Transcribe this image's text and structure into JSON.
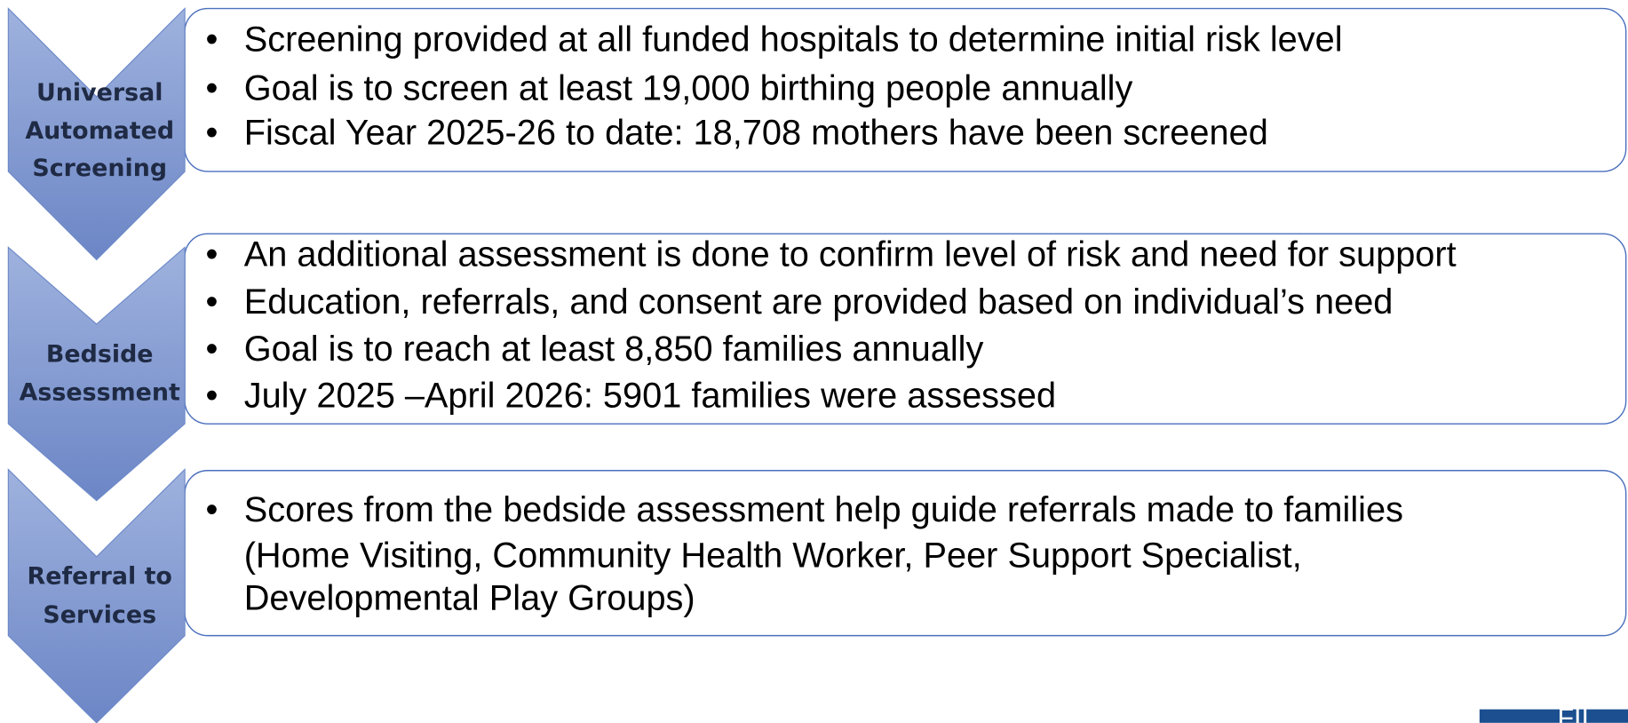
{
  "stages": [
    {
      "label": [
        "Universal",
        "Automated",
        "Screening"
      ],
      "bullets": [
        [
          "Screening provided at all funded hospitals to determine initial risk level"
        ],
        [
          "Goal is to screen at least 19,000 birthing people annually"
        ],
        [
          "Fiscal Year 2025-26 to date:  18,708 mothers have been screened"
        ]
      ]
    },
    {
      "label": [
        "Bedside",
        "Assessment"
      ],
      "bullets": [
        [
          "An additional assessment is done to confirm level of risk and need for support"
        ],
        [
          "Education, referrals, and consent are provided based on individual’s need"
        ],
        [
          "Goal is to reach at least 8,850 families annually"
        ],
        [
          "July 2025 –April 2026: 5901 families were assessed"
        ]
      ]
    },
    {
      "label": [
        "Referral to",
        "Services"
      ],
      "bullets": [
        [
          "Scores from the bedside assessment help guide referrals made to families",
          "(Home Visiting, Community Health Worker, Peer Support Specialist,",
          "Developmental Play Groups)"
        ]
      ]
    }
  ],
  "logo_text": "FII"
}
